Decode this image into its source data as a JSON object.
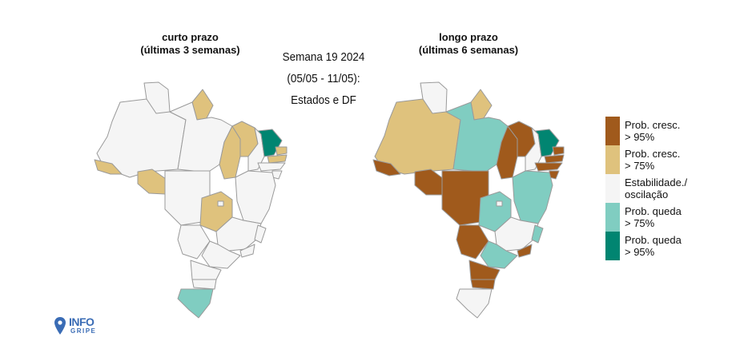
{
  "maps": {
    "left": {
      "title_line1": "curto prazo",
      "title_line2": "(últimas 3 semanas)"
    },
    "right": {
      "title_line1": "longo prazo",
      "title_line2": "(últimas 6 semanas)"
    }
  },
  "week": {
    "line1": "Semana 19 2024",
    "line2": "(05/05 - 11/05):",
    "line3": "Estados e DF"
  },
  "legend": [
    {
      "line1": "Prob. cresc.",
      "line2": "> 95%",
      "color": "#a05a1c"
    },
    {
      "line1": "Prob. cresc.",
      "line2": "> 75%",
      "color": "#dfc27d"
    },
    {
      "line1": "Estabilidade./",
      "line2": "oscilação",
      "color": "#f5f5f5"
    },
    {
      "line1": "Prob. queda",
      "line2": "> 75%",
      "color": "#80cdc1"
    },
    {
      "line1": "Prob. queda",
      "line2": "> 95%",
      "color": "#018571"
    }
  ],
  "logo": {
    "word": "INFO",
    "sub": "GRIPE",
    "color": "#3a6cb5"
  }
}
